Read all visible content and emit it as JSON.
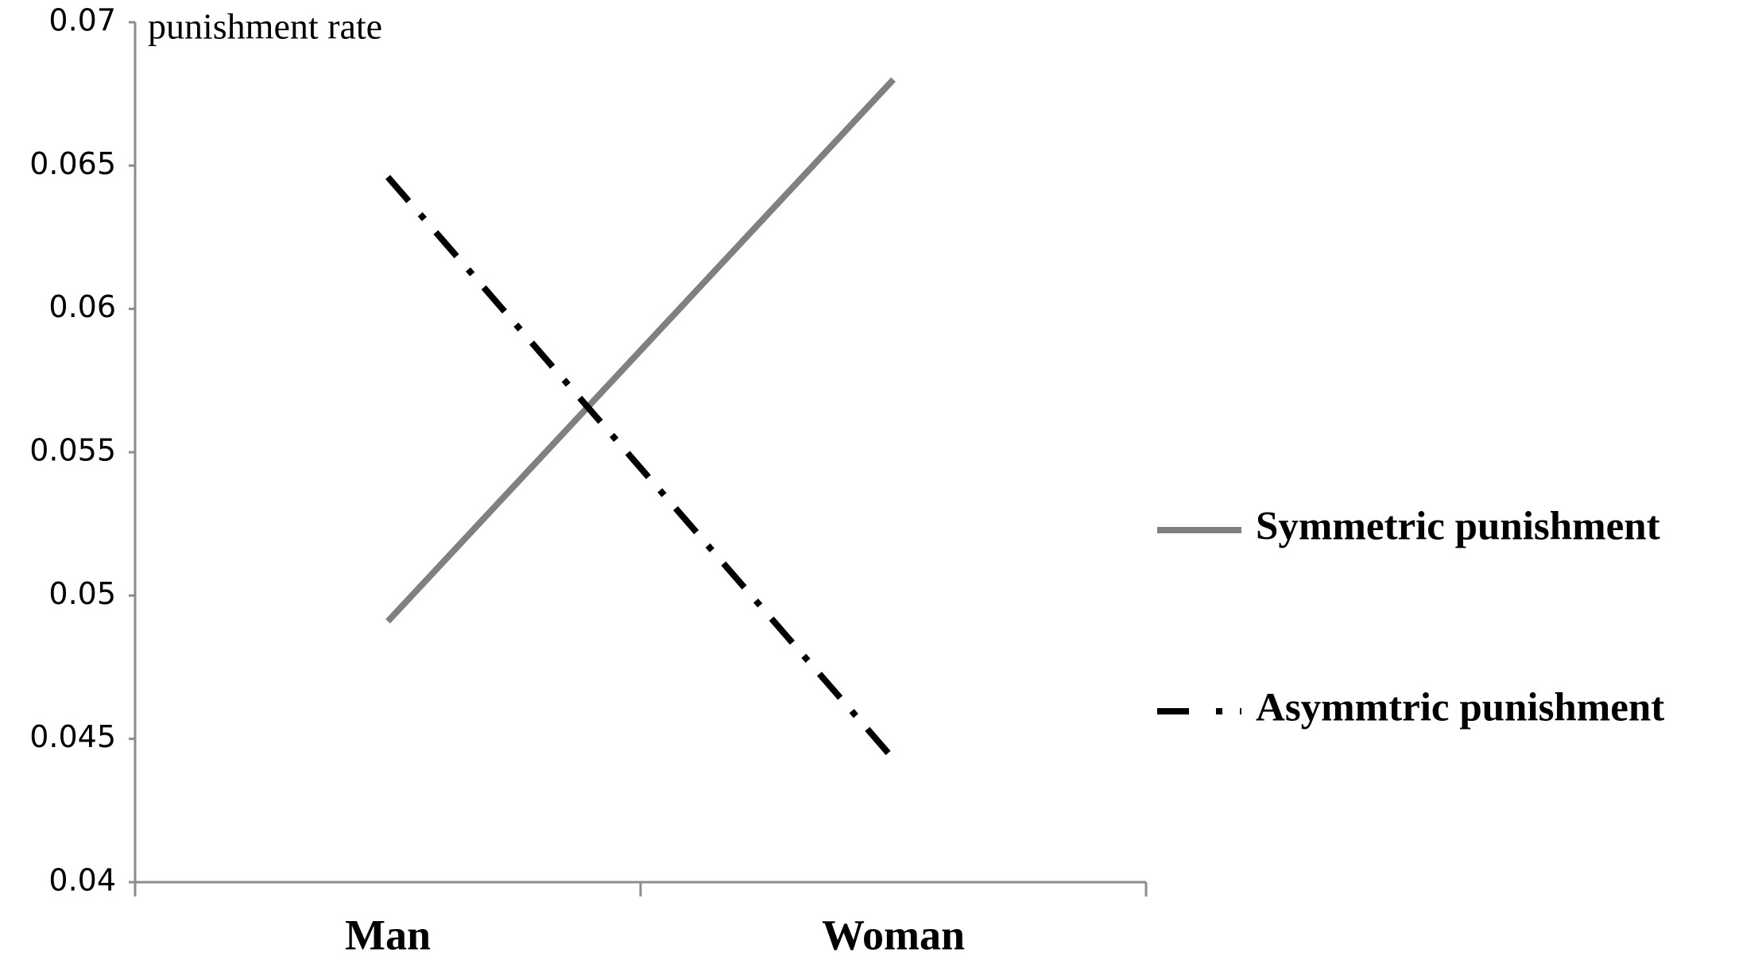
{
  "chart_data": {
    "type": "line",
    "y_label": "punishment rate",
    "categories": [
      "Man",
      "Woman"
    ],
    "series": [
      {
        "name": "Symmetric punishment",
        "color": "#808080",
        "linestyle": "solid",
        "values": [
          0.0491,
          0.068
        ]
      },
      {
        "name": "Asymmtric punishment",
        "color": "#000000",
        "linestyle": "dashdot",
        "values": [
          0.0646,
          0.0443
        ]
      }
    ],
    "ylim": [
      0.04,
      0.07
    ],
    "yticks": [
      0.04,
      0.045,
      0.05,
      0.055,
      0.06,
      0.065,
      0.07
    ],
    "grid": false,
    "legend": "right"
  }
}
